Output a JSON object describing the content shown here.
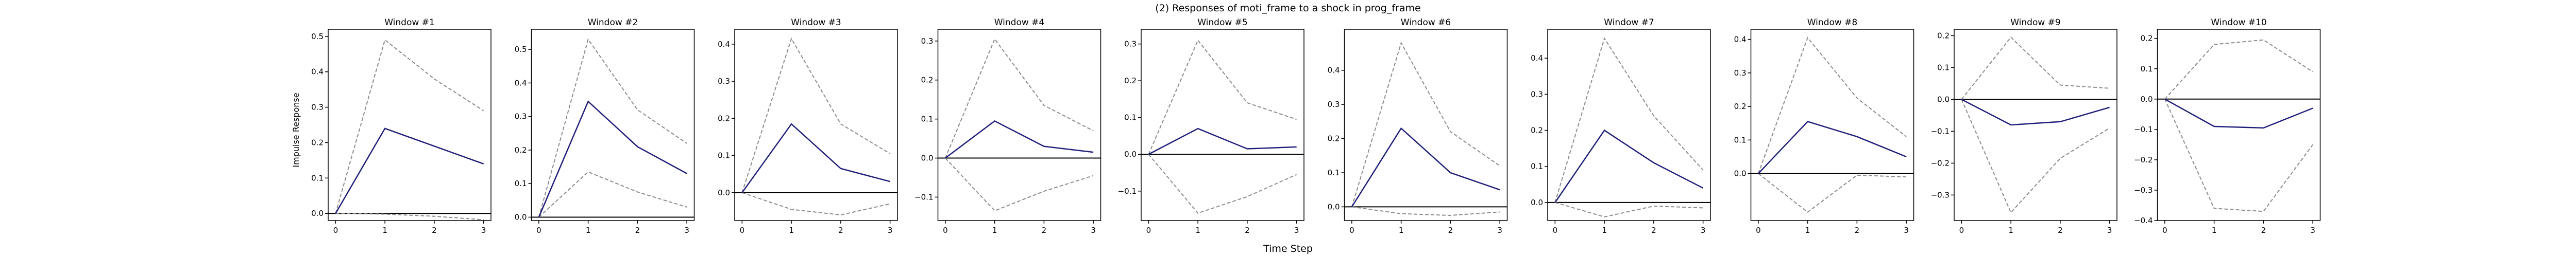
{
  "figure": {
    "title": "(2) Responses of moti_frame to a shock in prog_frame",
    "xlabel": "Time Step",
    "ylabel": "Impulse Response"
  },
  "colors": {
    "irf_line": "#1f1f7a",
    "ci_line": "#8c8c8c",
    "zero_line": "#000000",
    "axes": "#000000"
  },
  "chart_data": [
    {
      "type": "line",
      "title": "Window #1",
      "x": [
        0,
        1,
        2,
        3
      ],
      "xticks": [
        "0",
        "1",
        "2",
        "3"
      ],
      "ylim": [
        -0.02,
        0.52
      ],
      "yticks": [
        0.0,
        0.1,
        0.2,
        0.3,
        0.4,
        0.5
      ],
      "yticklabels": [
        "0.0",
        "0.1",
        "0.2",
        "0.3",
        "0.4",
        "0.5"
      ],
      "irf": [
        0.0,
        0.24,
        0.19,
        0.14
      ],
      "upper": [
        0.0,
        0.49,
        0.38,
        0.29
      ],
      "lower": [
        0.0,
        -0.002,
        -0.008,
        -0.018
      ]
    },
    {
      "type": "line",
      "title": "Window #2",
      "x": [
        0,
        1,
        2,
        3
      ],
      "xticks": [
        "0",
        "1",
        "2",
        "3"
      ],
      "ylim": [
        -0.01,
        0.56
      ],
      "yticks": [
        0.0,
        0.1,
        0.2,
        0.3,
        0.4,
        0.5
      ],
      "yticklabels": [
        "0.0",
        "0.1",
        "0.2",
        "0.3",
        "0.4",
        "0.5"
      ],
      "irf": [
        0.0,
        0.345,
        0.21,
        0.13
      ],
      "upper": [
        0.0,
        0.53,
        0.32,
        0.22
      ],
      "lower": [
        0.0,
        0.135,
        0.075,
        0.03
      ]
    },
    {
      "type": "line",
      "title": "Window #3",
      "x": [
        0,
        1,
        2,
        3
      ],
      "xticks": [
        "0",
        "1",
        "2",
        "3"
      ],
      "ylim": [
        -0.075,
        0.44
      ],
      "yticks": [
        0.0,
        0.1,
        0.2,
        0.3,
        0.4
      ],
      "yticklabels": [
        "0.0",
        "0.1",
        "0.2",
        "0.3",
        "0.4"
      ],
      "irf": [
        0.0,
        0.185,
        0.065,
        0.03
      ],
      "upper": [
        0.0,
        0.415,
        0.185,
        0.105
      ],
      "lower": [
        0.0,
        -0.045,
        -0.06,
        -0.03
      ]
    },
    {
      "type": "line",
      "title": "Window #4",
      "x": [
        0,
        1,
        2,
        3
      ],
      "xticks": [
        "0",
        "1",
        "2",
        "3"
      ],
      "ylim": [
        -0.16,
        0.33
      ],
      "yticks": [
        -0.1,
        0.0,
        0.1,
        0.2,
        0.3
      ],
      "yticklabels": [
        "−0.1",
        "0.0",
        "0.1",
        "0.2",
        "0.3"
      ],
      "irf": [
        0.0,
        0.095,
        0.03,
        0.015
      ],
      "upper": [
        0.0,
        0.305,
        0.135,
        0.07
      ],
      "lower": [
        0.0,
        -0.135,
        -0.085,
        -0.045
      ]
    },
    {
      "type": "line",
      "title": "Window #5",
      "x": [
        0,
        1,
        2,
        3
      ],
      "xticks": [
        "0",
        "1",
        "2",
        "3"
      ],
      "ylim": [
        -0.18,
        0.34
      ],
      "yticks": [
        -0.1,
        0.0,
        0.1,
        0.2,
        0.3
      ],
      "yticklabels": [
        "−0.1",
        "0.0",
        "0.1",
        "0.2",
        "0.3"
      ],
      "irf": [
        0.0,
        0.07,
        0.015,
        0.02
      ],
      "upper": [
        0.0,
        0.31,
        0.14,
        0.095
      ],
      "lower": [
        0.0,
        -0.16,
        -0.115,
        -0.055
      ]
    },
    {
      "type": "line",
      "title": "Window #6",
      "x": [
        0,
        1,
        2,
        3
      ],
      "xticks": [
        "0",
        "1",
        "2",
        "3"
      ],
      "ylim": [
        -0.04,
        0.52
      ],
      "yticks": [
        0.0,
        0.1,
        0.2,
        0.3,
        0.4
      ],
      "yticklabels": [
        "0.0",
        "0.1",
        "0.2",
        "0.3",
        "0.4"
      ],
      "irf": [
        0.0,
        0.23,
        0.1,
        0.05
      ],
      "upper": [
        0.0,
        0.48,
        0.22,
        0.12
      ],
      "lower": [
        0.0,
        -0.02,
        -0.025,
        -0.015
      ]
    },
    {
      "type": "line",
      "title": "Window #7",
      "x": [
        0,
        1,
        2,
        3
      ],
      "xticks": [
        "0",
        "1",
        "2",
        "3"
      ],
      "ylim": [
        -0.05,
        0.48
      ],
      "yticks": [
        0.0,
        0.1,
        0.2,
        0.3,
        0.4
      ],
      "yticklabels": [
        "0.0",
        "0.1",
        "0.2",
        "0.3",
        "0.4"
      ],
      "irf": [
        0.0,
        0.2,
        0.11,
        0.04
      ],
      "upper": [
        0.0,
        0.455,
        0.24,
        0.09
      ],
      "lower": [
        0.0,
        -0.04,
        -0.01,
        -0.015
      ]
    },
    {
      "type": "line",
      "title": "Window #8",
      "x": [
        0,
        1,
        2,
        3
      ],
      "xticks": [
        "0",
        "1",
        "2",
        "3"
      ],
      "ylim": [
        -0.14,
        0.43
      ],
      "yticks": [
        0.0,
        0.1,
        0.2,
        0.3,
        0.4
      ],
      "yticklabels": [
        "0.0",
        "0.1",
        "0.2",
        "0.3",
        "0.4"
      ],
      "irf": [
        0.0,
        0.155,
        0.11,
        0.05
      ],
      "upper": [
        0.0,
        0.405,
        0.225,
        0.11
      ],
      "lower": [
        0.0,
        -0.115,
        -0.005,
        -0.01
      ]
    },
    {
      "type": "line",
      "title": "Window #9",
      "x": [
        0,
        1,
        2,
        3
      ],
      "xticks": [
        "0",
        "1",
        "2",
        "3"
      ],
      "ylim": [
        -0.38,
        0.22
      ],
      "yticks": [
        -0.3,
        -0.2,
        -0.1,
        0.0,
        0.1,
        0.2
      ],
      "yticklabels": [
        "−0.3",
        "−0.2",
        "−0.1",
        "0.0",
        "0.1",
        "0.2"
      ],
      "irf": [
        0.0,
        -0.08,
        -0.07,
        -0.025
      ],
      "upper": [
        0.0,
        0.195,
        0.045,
        0.035
      ],
      "lower": [
        0.0,
        -0.355,
        -0.185,
        -0.09
      ]
    },
    {
      "type": "line",
      "title": "Window #10",
      "x": [
        0,
        1,
        2,
        3
      ],
      "xticks": [
        "0",
        "1",
        "2",
        "3"
      ],
      "ylim": [
        -0.4,
        0.23
      ],
      "yticks": [
        -0.4,
        -0.3,
        -0.2,
        -0.1,
        0.0,
        0.1,
        0.2
      ],
      "yticklabels": [
        "−0.4",
        "−0.3",
        "−0.2",
        "−0.1",
        "0.0",
        "0.1",
        "0.2"
      ],
      "irf": [
        0.0,
        -0.09,
        -0.095,
        -0.03
      ],
      "upper": [
        0.0,
        0.18,
        0.195,
        0.09
      ],
      "lower": [
        0.0,
        -0.36,
        -0.37,
        -0.15
      ]
    }
  ]
}
